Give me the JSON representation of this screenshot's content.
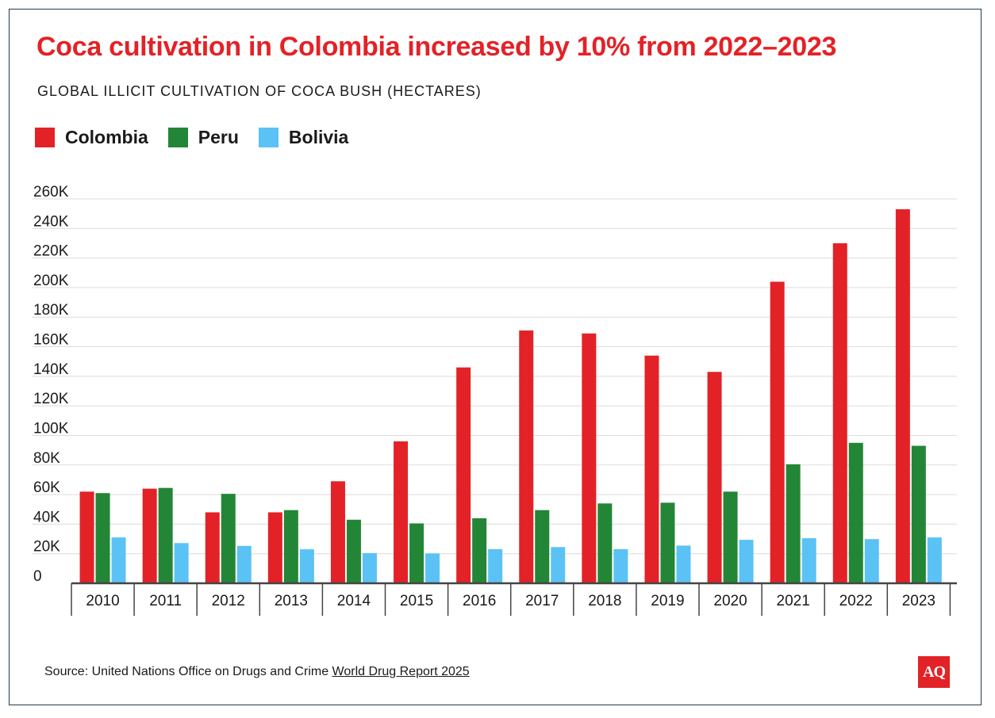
{
  "title": "Coca cultivation in Colombia increased by 10% from 2022–2023",
  "subtitle": "GLOBAL ILLICIT CULTIVATION OF COCA BUSH (HECTARES)",
  "source": {
    "prefix": "Source: United Nations Office on Drugs and Crime ",
    "link_text": "World Drug Report 2025"
  },
  "logo_text": "AQ",
  "colors": {
    "colombia": "#e32227",
    "peru": "#238636",
    "bolivia": "#5bc2f5",
    "grid": "#dcdcdc",
    "axis": "#444444",
    "text": "#1a1a1a"
  },
  "chart_data": {
    "type": "bar",
    "title": "Coca cultivation in Colombia increased by 10% from 2022–2023",
    "subtitle": "GLOBAL ILLICIT CULTIVATION OF COCA BUSH (HECTARES)",
    "xlabel": "",
    "ylabel": "",
    "ylim": [
      0,
      260000
    ],
    "yticks": [
      0,
      20000,
      40000,
      60000,
      80000,
      100000,
      120000,
      140000,
      160000,
      180000,
      200000,
      220000,
      240000,
      260000
    ],
    "ytick_labels": [
      "0",
      "20K",
      "40K",
      "60K",
      "80K",
      "100K",
      "120K",
      "140K",
      "160K",
      "180K",
      "200K",
      "220K",
      "240K",
      "260K"
    ],
    "grid": true,
    "legend_position": "top-left",
    "categories": [
      "2010",
      "2011",
      "2012",
      "2013",
      "2014",
      "2015",
      "2016",
      "2017",
      "2018",
      "2019",
      "2020",
      "2021",
      "2022",
      "2023"
    ],
    "series": [
      {
        "name": "Colombia",
        "color": "#e32227",
        "values": [
          62000,
          64000,
          48000,
          48000,
          69000,
          96000,
          146000,
          171000,
          169000,
          154000,
          143000,
          204000,
          230000,
          253000
        ]
      },
      {
        "name": "Peru",
        "color": "#238636",
        "values": [
          61000,
          64500,
          60500,
          49500,
          43000,
          40500,
          44000,
          49500,
          54000,
          54500,
          62000,
          80500,
          95000,
          93000
        ]
      },
      {
        "name": "Bolivia",
        "color": "#5bc2f5",
        "values": [
          31000,
          27200,
          25300,
          23000,
          20400,
          20200,
          23100,
          24500,
          23100,
          25500,
          29400,
          30500,
          29900,
          31000
        ]
      }
    ]
  }
}
